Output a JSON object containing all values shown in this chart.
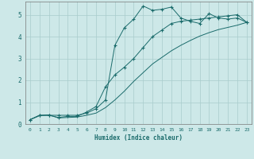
{
  "xlabel": "Humidex (Indice chaleur)",
  "xlim": [
    -0.5,
    23.5
  ],
  "ylim": [
    0,
    5.6
  ],
  "xticks": [
    0,
    1,
    2,
    3,
    4,
    5,
    6,
    7,
    8,
    9,
    10,
    11,
    12,
    13,
    14,
    15,
    16,
    17,
    18,
    19,
    20,
    21,
    22,
    23
  ],
  "yticks": [
    0,
    1,
    2,
    3,
    4,
    5
  ],
  "bg_color": "#cde8e8",
  "grid_color": "#a8cccc",
  "line_color": "#1a6b6b",
  "line1_x": [
    0,
    1,
    2,
    3,
    4,
    5,
    6,
    7,
    8,
    9,
    10,
    11,
    12,
    13,
    14,
    15,
    16,
    17,
    18,
    19,
    20,
    21,
    22,
    23
  ],
  "line1_y": [
    0.2,
    0.4,
    0.4,
    0.4,
    0.4,
    0.4,
    0.5,
    0.7,
    1.1,
    3.6,
    4.4,
    4.8,
    5.4,
    5.2,
    5.25,
    5.35,
    4.85,
    4.7,
    4.6,
    5.05,
    4.85,
    4.8,
    4.85,
    4.65
  ],
  "line2_x": [
    0,
    1,
    2,
    3,
    4,
    5,
    6,
    7,
    8,
    9,
    10,
    11,
    12,
    13,
    14,
    15,
    16,
    17,
    18,
    19,
    20,
    21,
    22,
    23
  ],
  "line2_y": [
    0.2,
    0.4,
    0.4,
    0.3,
    0.35,
    0.35,
    0.55,
    0.8,
    1.7,
    2.25,
    2.6,
    3.0,
    3.5,
    4.0,
    4.3,
    4.6,
    4.7,
    4.75,
    4.8,
    4.85,
    4.9,
    4.95,
    5.0,
    4.65
  ],
  "line3_x": [
    0,
    1,
    2,
    3,
    4,
    5,
    6,
    7,
    8,
    9,
    10,
    11,
    12,
    13,
    14,
    15,
    16,
    17,
    18,
    19,
    20,
    21,
    22,
    23
  ],
  "line3_y": [
    0.2,
    0.38,
    0.42,
    0.28,
    0.3,
    0.32,
    0.4,
    0.5,
    0.75,
    1.1,
    1.5,
    1.95,
    2.35,
    2.75,
    3.05,
    3.35,
    3.6,
    3.82,
    4.02,
    4.18,
    4.32,
    4.42,
    4.52,
    4.65
  ]
}
